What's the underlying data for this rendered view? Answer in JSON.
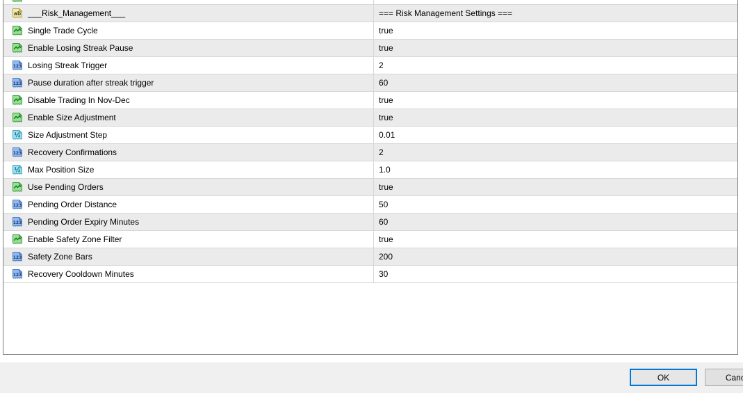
{
  "dialog": {
    "footer": {
      "ok_label": "OK",
      "cancel_label": "Cancel"
    }
  },
  "table": {
    "clipped_top_row": {
      "icon": "bool"
    },
    "rows": [
      {
        "name": "___Risk_Management___",
        "value": "=== Risk Management Settings ===",
        "type": "string"
      },
      {
        "name": "Single Trade Cycle",
        "value": "true",
        "type": "bool"
      },
      {
        "name": "Enable Losing Streak Pause",
        "value": "true",
        "type": "bool"
      },
      {
        "name": "Losing Streak Trigger",
        "value": "2",
        "type": "int"
      },
      {
        "name": "Pause duration after streak trigger",
        "value": "60",
        "type": "int"
      },
      {
        "name": "Disable Trading In Nov-Dec",
        "value": "true",
        "type": "bool"
      },
      {
        "name": "Enable Size Adjustment",
        "value": "true",
        "type": "bool"
      },
      {
        "name": "Size Adjustment Step",
        "value": "0.01",
        "type": "double"
      },
      {
        "name": "Recovery Confirmations",
        "value": "2",
        "type": "int"
      },
      {
        "name": "Max Position Size",
        "value": "1.0",
        "type": "double"
      },
      {
        "name": "Use Pending Orders",
        "value": "true",
        "type": "bool"
      },
      {
        "name": "Pending Order Distance",
        "value": "50",
        "type": "int"
      },
      {
        "name": "Pending Order Expiry Minutes",
        "value": "60",
        "type": "int"
      },
      {
        "name": "Enable Safety Zone Filter",
        "value": "true",
        "type": "bool"
      },
      {
        "name": "Safety Zone Bars",
        "value": "200",
        "type": "int"
      },
      {
        "name": "Recovery Cooldown Minutes",
        "value": "30",
        "type": "int"
      }
    ]
  },
  "icon_types": {
    "string": {
      "icon_name": "string-type-icon",
      "glyph": "ab",
      "fill": "#f2ecb4",
      "stroke": "#b1a13d",
      "fold": "#d9ca79",
      "glyph_color": "#4f4a15"
    },
    "bool": {
      "icon_name": "bool-type-icon",
      "glyph": "",
      "fill": "#98dd98",
      "stroke": "#3aa03a",
      "fold": "#6cc26c",
      "glyph_color": "#1d7a1d"
    },
    "int": {
      "icon_name": "integer-type-icon",
      "glyph": "123",
      "fill": "#95b8ea",
      "stroke": "#4d7ec5",
      "fold": "#6f9cd9",
      "glyph_color": "#15397e"
    },
    "double": {
      "icon_name": "double-type-icon",
      "glyph": "½",
      "fill": "#9cdeee",
      "stroke": "#45a8c6",
      "fold": "#6fc3da",
      "glyph_color": "#0e6a80"
    }
  },
  "colors": {
    "accent": "#0078d7",
    "row_alt_bg": "#ebebeb",
    "grid_line": "#d7d7d7",
    "table_border": "#7a7a7a",
    "footer_bg": "#f0f0f0",
    "button_face": "#e1e1e1"
  }
}
